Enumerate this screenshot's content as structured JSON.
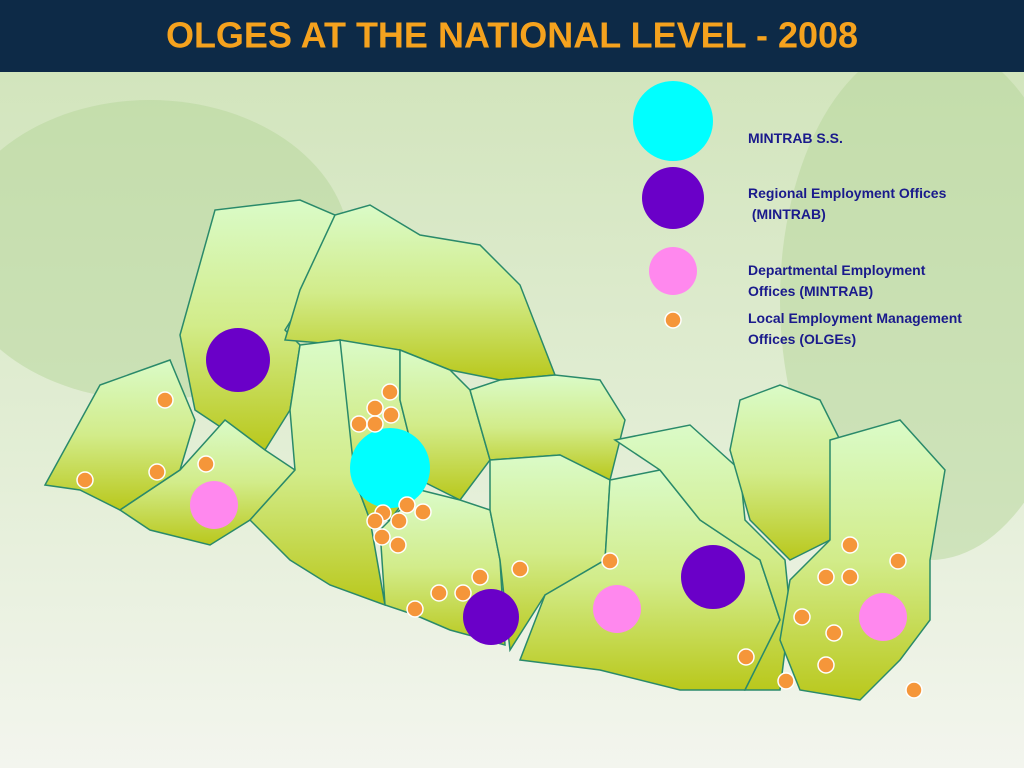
{
  "header": {
    "title": "OLGES AT THE NATIONAL LEVEL - 2008"
  },
  "legend": {
    "items": [
      {
        "lines": [
          "MINTRAB S.S."
        ]
      },
      {
        "lines": [
          "Regional Employment Offices",
          " (MINTRAB)"
        ]
      },
      {
        "lines": [
          "Departmental Employment",
          "Offices (MINTRAB)"
        ]
      },
      {
        "lines": [
          "Local Employment Management",
          "Offices (OLGEs)"
        ]
      }
    ]
  }
}
